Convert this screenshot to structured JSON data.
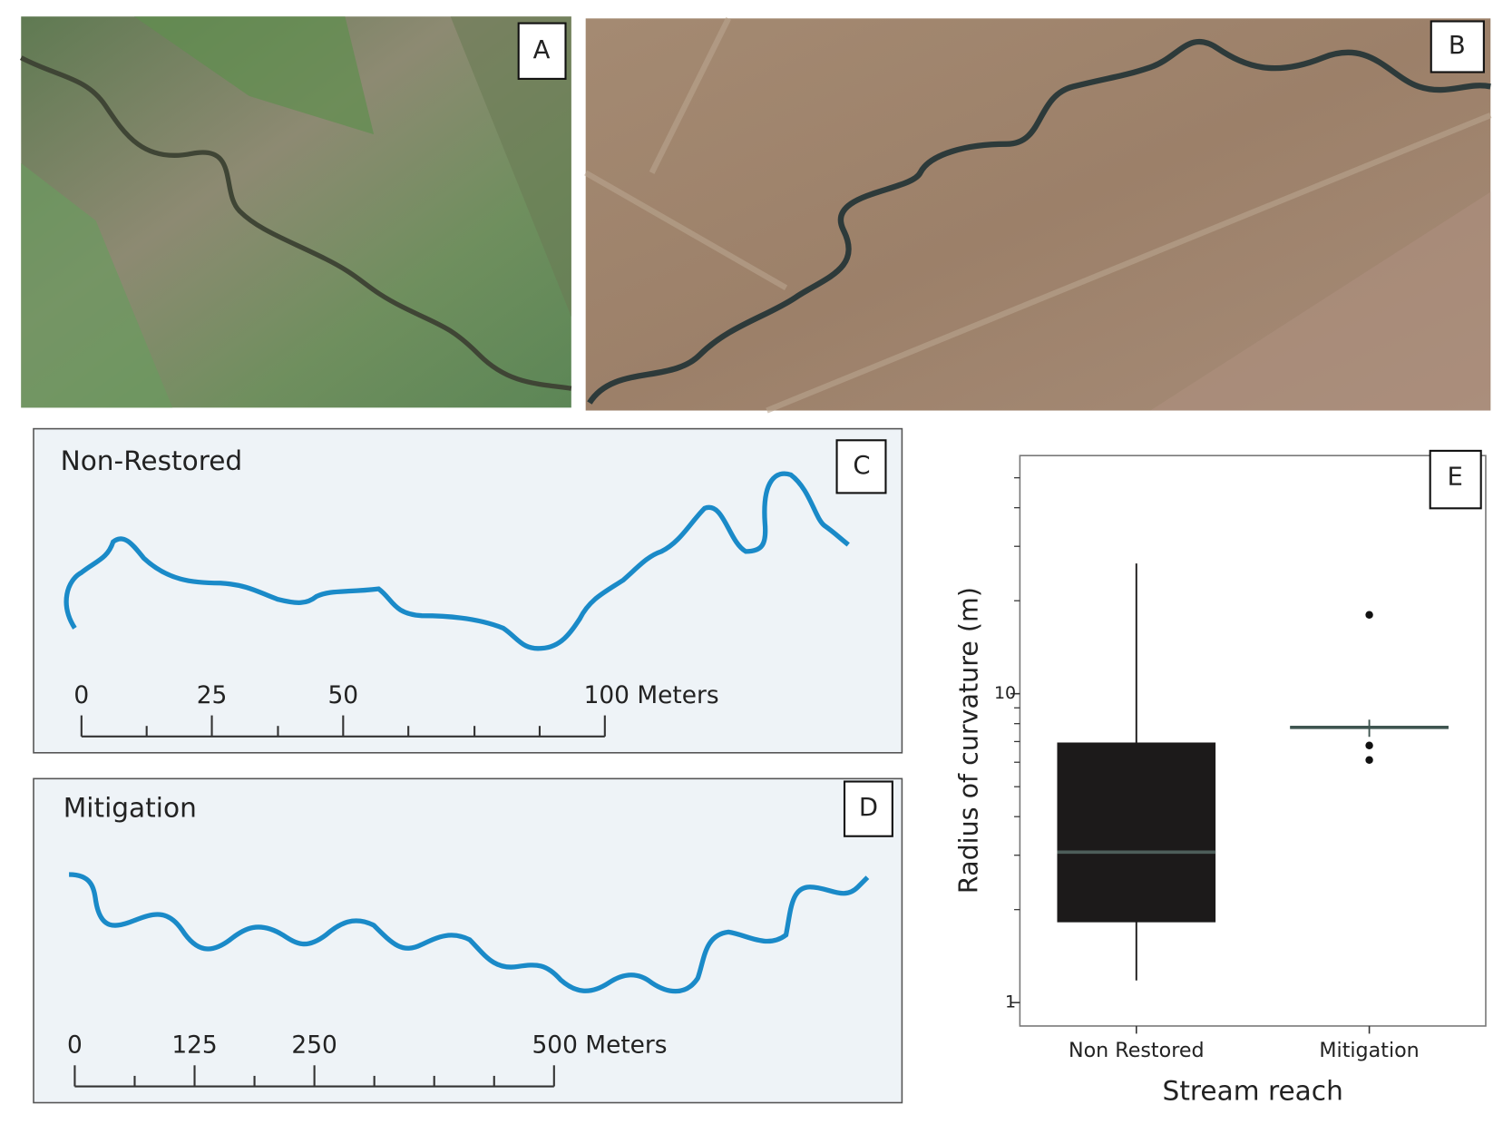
{
  "panels": {
    "a": {
      "label": "A"
    },
    "b": {
      "label": "B"
    },
    "c": {
      "label": "C",
      "title": "Non-Restored",
      "scale_labels": [
        "0",
        "25",
        "50",
        "100 Meters"
      ]
    },
    "d": {
      "label": "D",
      "title": "Mitigation",
      "scale_labels": [
        "0",
        "125",
        "250",
        "500 Meters"
      ]
    }
  },
  "chart_data": {
    "type": "box",
    "label": "E",
    "xlabel": "Stream reach",
    "ylabel": "Radius of curvature (m)",
    "log_y": true,
    "ylim": [
      0.84,
      59
    ],
    "yticks": [
      1,
      10
    ],
    "yminor_ticks": [
      2,
      3,
      4,
      5,
      6,
      7,
      8,
      9,
      20,
      30,
      40,
      50
    ],
    "categories": [
      "Non Restored",
      "Mitigation"
    ],
    "boxes": [
      {
        "min": 1.18,
        "q1": 1.82,
        "median": 3.07,
        "q3": 6.95,
        "max": 26.4,
        "outliers": [],
        "color": "#1c1a1a",
        "median_color": "#4d5e5a"
      },
      {
        "min": 7.25,
        "q1": 7.7,
        "median": 7.78,
        "q3": 7.85,
        "max": 8.24,
        "outliers": [
          18.0,
          6.8,
          6.1
        ],
        "color": "#3f5550",
        "median_color": "#3f5550"
      }
    ]
  }
}
